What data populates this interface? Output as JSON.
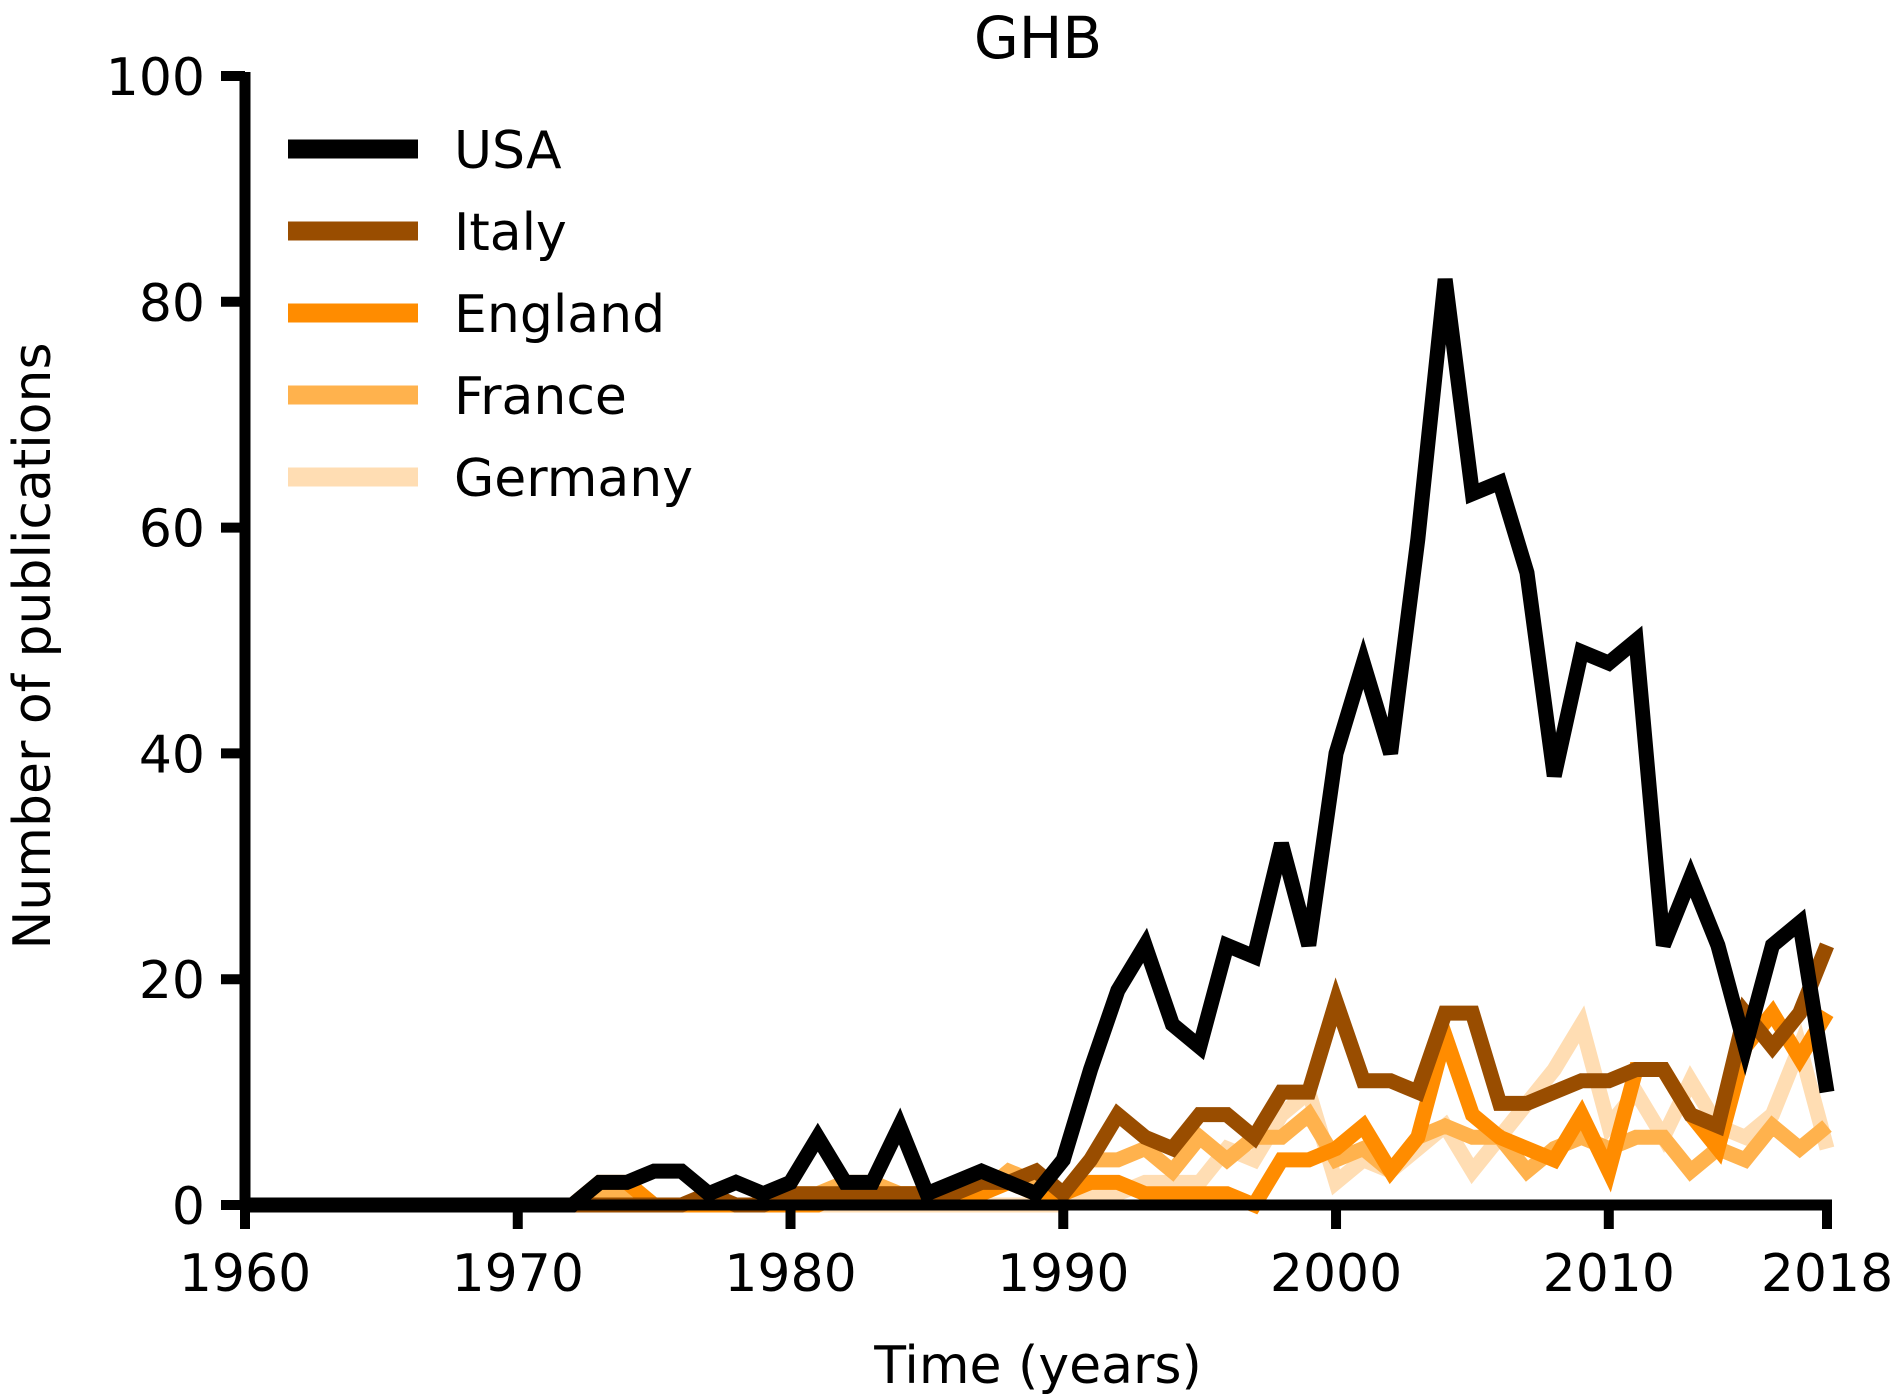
{
  "chart_data": {
    "type": "line",
    "title": "GHB",
    "xlabel": "Time (years)",
    "ylabel": "Number of publications",
    "xlim": [
      1960,
      2018
    ],
    "ylim": [
      0,
      100
    ],
    "xticks": [
      1960,
      1970,
      1980,
      1990,
      2000,
      2010,
      2018
    ],
    "yticks": [
      0,
      20,
      40,
      60,
      80,
      100
    ],
    "legend_position": "top-left",
    "grid": false,
    "x": [
      1960,
      1961,
      1962,
      1963,
      1964,
      1965,
      1966,
      1967,
      1968,
      1969,
      1970,
      1971,
      1972,
      1973,
      1974,
      1975,
      1976,
      1977,
      1978,
      1979,
      1980,
      1981,
      1982,
      1983,
      1984,
      1985,
      1986,
      1987,
      1988,
      1989,
      1990,
      1991,
      1992,
      1993,
      1994,
      1995,
      1996,
      1997,
      1998,
      1999,
      2000,
      2001,
      2002,
      2003,
      2004,
      2005,
      2006,
      2007,
      2008,
      2009,
      2010,
      2011,
      2012,
      2013,
      2014,
      2015,
      2016,
      2017,
      2018
    ],
    "series": [
      {
        "name": "USA",
        "color": "#000000",
        "values": [
          0,
          0,
          0,
          0,
          0,
          0,
          0,
          0,
          0,
          0,
          0,
          0,
          0,
          2,
          2,
          3,
          3,
          1,
          2,
          1,
          2,
          6,
          2,
          2,
          7,
          1,
          2,
          3,
          2,
          1,
          4,
          12,
          19,
          23,
          16,
          14,
          23,
          22,
          32,
          23,
          40,
          48,
          40,
          59,
          82,
          63,
          64,
          56,
          38,
          49,
          48,
          50,
          23,
          29,
          23,
          14,
          23,
          25,
          10
        ]
      },
      {
        "name": "Italy",
        "color": "#994D00",
        "values": [
          0,
          0,
          0,
          0,
          0,
          0,
          0,
          0,
          0,
          0,
          0,
          0,
          0,
          0,
          0,
          0,
          0,
          1,
          0,
          0,
          1,
          1,
          1,
          1,
          1,
          1,
          1,
          2,
          2,
          3,
          1,
          4,
          8,
          6,
          5,
          8,
          8,
          6,
          10,
          10,
          18,
          11,
          11,
          10,
          17,
          17,
          9,
          9,
          10,
          11,
          11,
          12,
          12,
          8,
          7,
          17,
          14,
          17,
          23
        ]
      },
      {
        "name": "England",
        "color": "#FF8C00",
        "values": [
          0,
          0,
          0,
          0,
          0,
          0,
          0,
          0,
          0,
          0,
          0,
          0,
          0,
          2,
          2,
          0,
          0,
          0,
          0,
          0,
          0,
          0,
          1,
          1,
          1,
          1,
          1,
          1,
          2,
          1,
          1,
          2,
          2,
          1,
          1,
          1,
          1,
          0,
          4,
          4,
          5,
          7,
          3,
          6,
          15,
          8,
          6,
          5,
          4,
          8,
          3,
          12,
          12,
          8,
          5,
          14,
          17,
          13,
          17
        ]
      },
      {
        "name": "France",
        "color": "#FFB24D",
        "values": [
          0,
          0,
          0,
          0,
          0,
          0,
          0,
          0,
          0,
          0,
          0,
          0,
          0,
          1,
          1,
          0,
          0,
          0,
          0,
          0,
          1,
          1,
          2,
          2,
          1,
          1,
          1,
          1,
          3,
          2,
          1,
          4,
          4,
          5,
          3,
          6,
          4,
          6,
          6,
          8,
          4,
          5,
          3,
          6,
          7,
          6,
          6,
          3,
          5,
          6,
          5,
          6,
          6,
          3,
          5,
          4,
          7,
          5,
          7
        ]
      },
      {
        "name": "Germany",
        "color": "#FFDDB3",
        "values": [
          0,
          0,
          0,
          0,
          0,
          0,
          0,
          0,
          0,
          0,
          0,
          0,
          0,
          0,
          0,
          0,
          0,
          0,
          0,
          0,
          0,
          0,
          0,
          0,
          0,
          0,
          0,
          0,
          0,
          0,
          0,
          1,
          1,
          2,
          2,
          2,
          5,
          4,
          8,
          10,
          2,
          4,
          3,
          5,
          7,
          3,
          6,
          9,
          12,
          16,
          7,
          10,
          6,
          11,
          7,
          6,
          8,
          14,
          5
        ]
      }
    ]
  }
}
